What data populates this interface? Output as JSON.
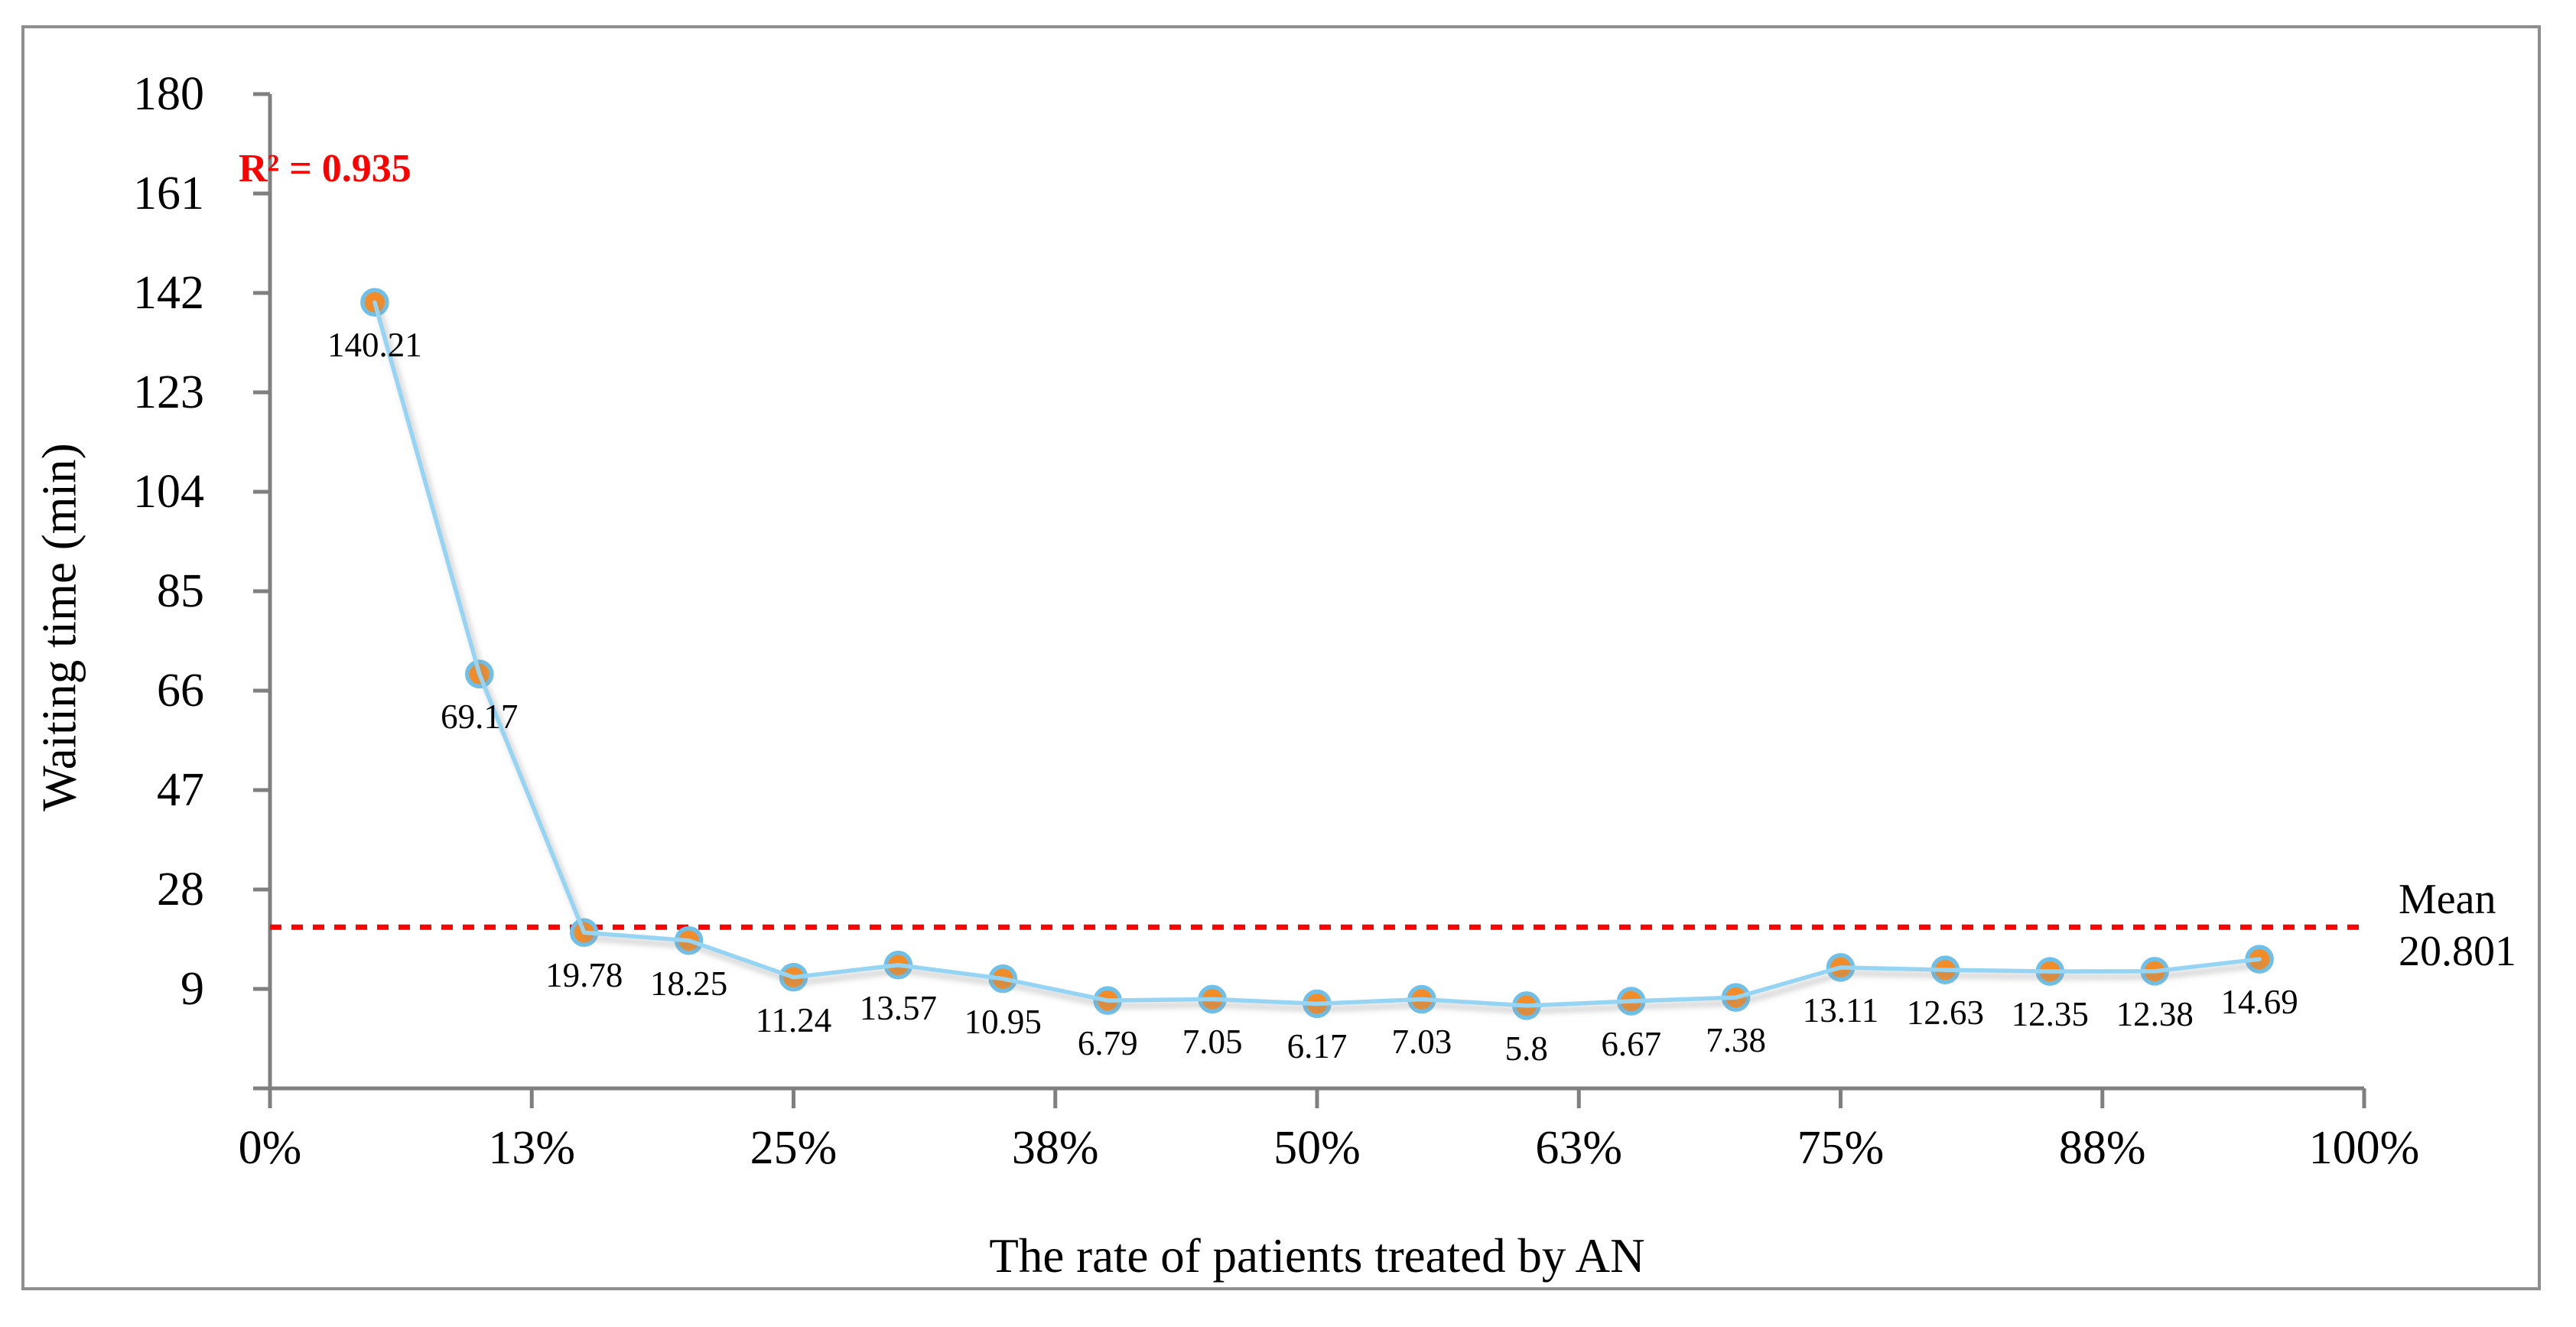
{
  "figure": {
    "background": "#ffffff",
    "border_color": "#8E8E8E"
  },
  "chart_data": {
    "type": "scatter",
    "title": "",
    "xlabel": "The rate of patients treated by AN",
    "ylabel": "Waiting time (min)",
    "xlim": [
      0,
      100
    ],
    "ylim": [
      -10,
      180
    ],
    "grid": false,
    "legend": false,
    "x_tick_labels": [
      "0%",
      "13%",
      "25%",
      "38%",
      "50%",
      "63%",
      "75%",
      "88%",
      "100%"
    ],
    "x_tick_positions": [
      0,
      12.5,
      25,
      37.5,
      50,
      62.5,
      75,
      87.5,
      100
    ],
    "y_ticks": [
      180,
      161,
      142,
      123,
      104,
      85,
      66,
      47,
      28,
      9
    ],
    "points": {
      "x": [
        5,
        10,
        15,
        20,
        25,
        30,
        35,
        40,
        45,
        50,
        55,
        60,
        65,
        70,
        75,
        80,
        85,
        90,
        95
      ],
      "y": [
        140.21,
        69.17,
        19.78,
        18.25,
        11.24,
        13.57,
        10.95,
        6.79,
        7.05,
        6.17,
        7.03,
        5.8,
        6.67,
        7.38,
        13.11,
        12.63,
        12.35,
        12.38,
        14.69
      ],
      "labels": [
        "140.21",
        "69.17",
        "19.78",
        "18.25",
        "11.24",
        "13.57",
        "10.95",
        "6.79",
        "7.05",
        "6.17",
        "7.03",
        "5.8",
        "6.67",
        "7.38",
        "13.11",
        "12.63",
        "12.35",
        "12.38",
        "14.69"
      ]
    },
    "trendline": {
      "type": "polynomial",
      "degree": 6,
      "r_squared_label": "R² = 0.935"
    },
    "mean_line": {
      "value": 20.801,
      "label_line1": "Mean",
      "label_line2": "20.801"
    },
    "colors": {
      "marker_fill": "#F28C28",
      "marker_stroke": "#6FC0E8",
      "trendline": "#96D4F4",
      "trendline_shadow": "#8A8A8A",
      "mean_line": "#FF0000",
      "axis": "#7F7F7F",
      "text": "#000000",
      "r_squared": "#FF0000"
    }
  }
}
